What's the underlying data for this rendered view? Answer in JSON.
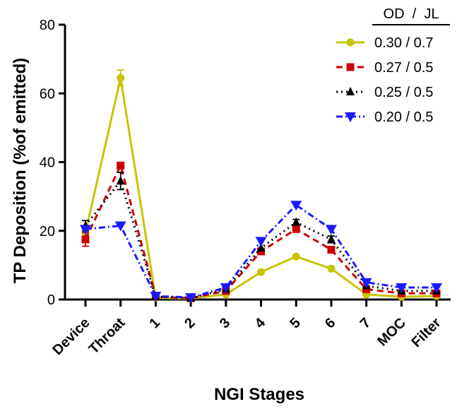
{
  "chart_data": {
    "type": "line",
    "title": "",
    "xlabel": "NGI Stages",
    "ylabel": "TP Deposition (%of emitted)",
    "ylim": [
      0,
      80
    ],
    "yticks": [
      0,
      20,
      40,
      60,
      80
    ],
    "categories": [
      "Device",
      "Throat",
      "1",
      "2",
      "3",
      "4",
      "5",
      "6",
      "7",
      "MOC",
      "Filter"
    ],
    "legend_header": "OD  /  JL",
    "series": [
      {
        "name": "0.30 / 0.7",
        "color": "#c8c400",
        "dash": "solid",
        "marker": "circle",
        "values": [
          19.5,
          64.5,
          0.5,
          0.3,
          1.5,
          8.0,
          12.5,
          9.0,
          1.5,
          0.8,
          1.0
        ],
        "errors": [
          2.0,
          2.3,
          0,
          0,
          0,
          0,
          0,
          0,
          0,
          0,
          0
        ]
      },
      {
        "name": "0.27 / 0.5",
        "color": "#cc0000",
        "dash": "dashed",
        "marker": "square",
        "values": [
          17.5,
          39.0,
          0.8,
          0.4,
          2.5,
          14.0,
          20.5,
          14.5,
          3.0,
          1.8,
          1.8
        ],
        "errors": [
          2.0,
          0,
          0,
          0,
          0,
          0,
          0,
          0,
          0,
          0,
          0
        ]
      },
      {
        "name": "0.25 / 0.5",
        "color": "#000000",
        "dash": "dotted",
        "marker": "triangle-up",
        "values": [
          21.5,
          34.5,
          0.8,
          0.4,
          3.0,
          15.0,
          22.5,
          17.5,
          4.0,
          2.5,
          2.5
        ],
        "errors": [
          1.5,
          2.5,
          0,
          0,
          0,
          0,
          0.8,
          1.0,
          0,
          0,
          0
        ]
      },
      {
        "name": "0.20 / 0.5",
        "color": "#1a1aff",
        "dash": "dashdot",
        "marker": "triangle-down",
        "values": [
          20.5,
          21.5,
          1.0,
          0.6,
          3.5,
          17.0,
          27.5,
          20.5,
          5.0,
          3.5,
          3.5
        ],
        "errors": [
          0,
          0,
          0,
          0,
          0,
          0,
          0,
          0,
          0,
          0,
          0
        ]
      }
    ]
  }
}
